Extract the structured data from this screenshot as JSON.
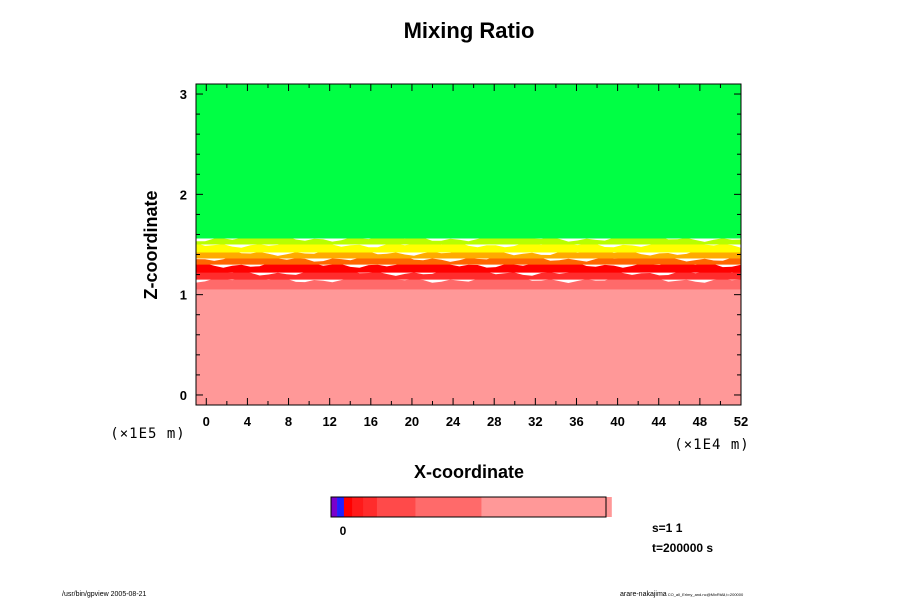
{
  "chart_data": {
    "type": "heatmap",
    "title": "Mixing Ratio",
    "xlabel": "X-coordinate",
    "ylabel": "Z-coordinate",
    "x_ticks": [
      "0",
      "4",
      "8",
      "12",
      "16",
      "20",
      "24",
      "28",
      "32",
      "36",
      "40",
      "44",
      "48",
      "52"
    ],
    "y_ticks": [
      "0",
      "1",
      "2",
      "3"
    ],
    "xlim": [
      -1,
      52
    ],
    "ylim": [
      -0.1,
      3.1
    ],
    "x_unit": "(×1E4 m)",
    "y_unit": "(×1E5 m)",
    "bands": [
      {
        "z0": -0.1,
        "z1": 1.05,
        "color": "#ff9898"
      },
      {
        "z0": 1.05,
        "z1": 1.15,
        "color": "#ff6a6a"
      },
      {
        "z0": 1.15,
        "z1": 1.22,
        "color": "#ff2c2c"
      },
      {
        "z0": 1.22,
        "z1": 1.3,
        "color": "#ff0000"
      },
      {
        "z0": 1.3,
        "z1": 1.36,
        "color": "#ff6600"
      },
      {
        "z0": 1.36,
        "z1": 1.42,
        "color": "#ffaa00"
      },
      {
        "z0": 1.42,
        "z1": 1.5,
        "color": "#ffff00"
      },
      {
        "z0": 1.5,
        "z1": 1.56,
        "color": "#b8ff00"
      },
      {
        "z0": 1.56,
        "z1": 3.1,
        "color": "#00ff44"
      }
    ],
    "colorbar": {
      "tick_label": "0",
      "segments": [
        {
          "frac": 0.022,
          "color": "#7a00cc"
        },
        {
          "frac": 0.025,
          "color": "#2020ff"
        },
        {
          "frac": 0.03,
          "color": "#ff0000"
        },
        {
          "frac": 0.04,
          "color": "#ff1a1a"
        },
        {
          "frac": 0.05,
          "color": "#ff2c2c"
        },
        {
          "frac": 0.14,
          "color": "#ff4a4a"
        },
        {
          "frac": 0.24,
          "color": "#ff6a6a"
        },
        {
          "frac": 0.473,
          "color": "#ff9898"
        }
      ]
    },
    "annotations": {
      "s_value": "s=1 1",
      "t_value": "t=200000 s"
    }
  },
  "footer": {
    "left": "/usr/bin/gpview 2005-08-21",
    "right": "arare-nakajima",
    "right_small": "CO_all_Erlmy_and.nc@MixRtAll,t=200000"
  }
}
